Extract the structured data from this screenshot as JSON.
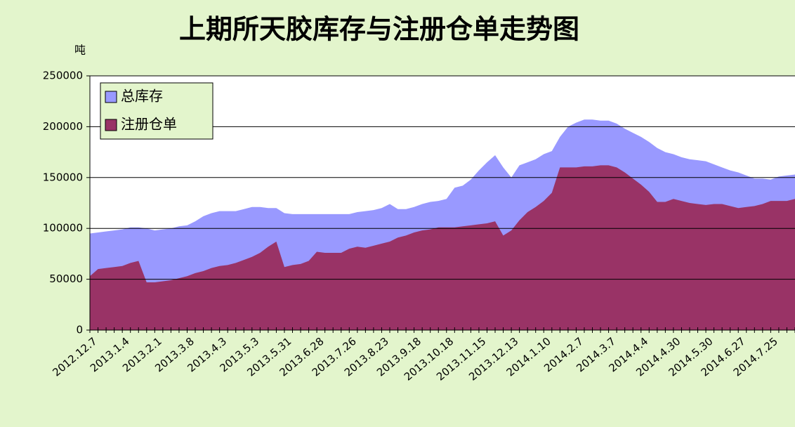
{
  "chart_data": {
    "type": "area",
    "title": "上期所天胶库存与注册仓单走势图",
    "y_label": "吨",
    "categories": [
      "2012.12.7",
      null,
      null,
      null,
      "2013.1.4",
      null,
      null,
      null,
      "2013.2.1",
      null,
      null,
      null,
      "2013.3.8",
      null,
      null,
      null,
      "2013.4.3",
      null,
      null,
      null,
      "2013.5.3",
      null,
      null,
      null,
      "2013.5.31",
      null,
      null,
      null,
      "2013.6.28",
      null,
      null,
      null,
      "2013.7.26",
      null,
      null,
      null,
      "2013.8.23",
      null,
      null,
      null,
      "2013.9.18",
      null,
      null,
      null,
      "2013.10.18",
      null,
      null,
      null,
      "2013.11.15",
      null,
      null,
      null,
      "2013.12.13",
      null,
      null,
      null,
      "2014.1.10",
      null,
      null,
      null,
      "2014.2.7",
      null,
      null,
      null,
      "2014.3.7",
      null,
      null,
      null,
      "2014.4.4",
      null,
      null,
      null,
      "2014.4.30",
      null,
      null,
      null,
      "2014.5.30",
      null,
      null,
      null,
      "2014.6.27",
      null,
      null,
      null,
      "2014.7.25",
      null,
      null,
      null
    ],
    "series": [
      {
        "name": "总库存",
        "color": "#9999ff",
        "values": [
          95000,
          96000,
          97000,
          98000,
          99000,
          101000,
          101000,
          100000,
          98000,
          99000,
          100000,
          102000,
          103000,
          107000,
          112000,
          115000,
          117000,
          117000,
          117000,
          119000,
          121000,
          121000,
          120000,
          120000,
          115000,
          114000,
          114000,
          114000,
          114000,
          114000,
          114000,
          114000,
          114000,
          116000,
          117000,
          118000,
          120000,
          124000,
          119000,
          119000,
          121000,
          124000,
          126000,
          127000,
          129000,
          140000,
          142000,
          148000,
          157000,
          165000,
          172000,
          160000,
          150000,
          162000,
          165000,
          168000,
          173000,
          176000,
          190000,
          200000,
          204000,
          207000,
          207000,
          206000,
          206000,
          203000,
          198000,
          194000,
          190000,
          185000,
          179000,
          175000,
          173000,
          170000,
          168000,
          167000,
          166000,
          163000,
          160000,
          157000,
          155000,
          152000,
          149000,
          149000,
          148000,
          151000,
          152000,
          153000
        ]
      },
      {
        "name": "注册仓单",
        "color": "#993366",
        "values": [
          53000,
          60000,
          61000,
          62000,
          63000,
          66000,
          68000,
          47000,
          47000,
          48000,
          49000,
          51000,
          53000,
          56000,
          58000,
          61000,
          63000,
          64000,
          66000,
          69000,
          72000,
          76000,
          82000,
          87000,
          62000,
          64000,
          65000,
          68000,
          77000,
          76000,
          76000,
          76000,
          80000,
          82000,
          81000,
          83000,
          85000,
          87000,
          91000,
          93000,
          96000,
          98000,
          99000,
          101000,
          101000,
          101000,
          102000,
          103000,
          104000,
          105000,
          107000,
          93000,
          98000,
          108000,
          116000,
          121000,
          127000,
          135000,
          160000,
          160000,
          160000,
          161000,
          161000,
          162000,
          162000,
          160000,
          155000,
          149000,
          143000,
          136000,
          126000,
          126000,
          129000,
          127000,
          125000,
          124000,
          123000,
          124000,
          124000,
          122000,
          120000,
          121000,
          122000,
          124000,
          127000,
          127000,
          127000,
          129000
        ]
      }
    ],
    "ylim": [
      0,
      250000
    ],
    "yticks": [
      0,
      50000,
      100000,
      150000,
      200000,
      250000
    ],
    "grid": true,
    "legend": "upper left"
  }
}
